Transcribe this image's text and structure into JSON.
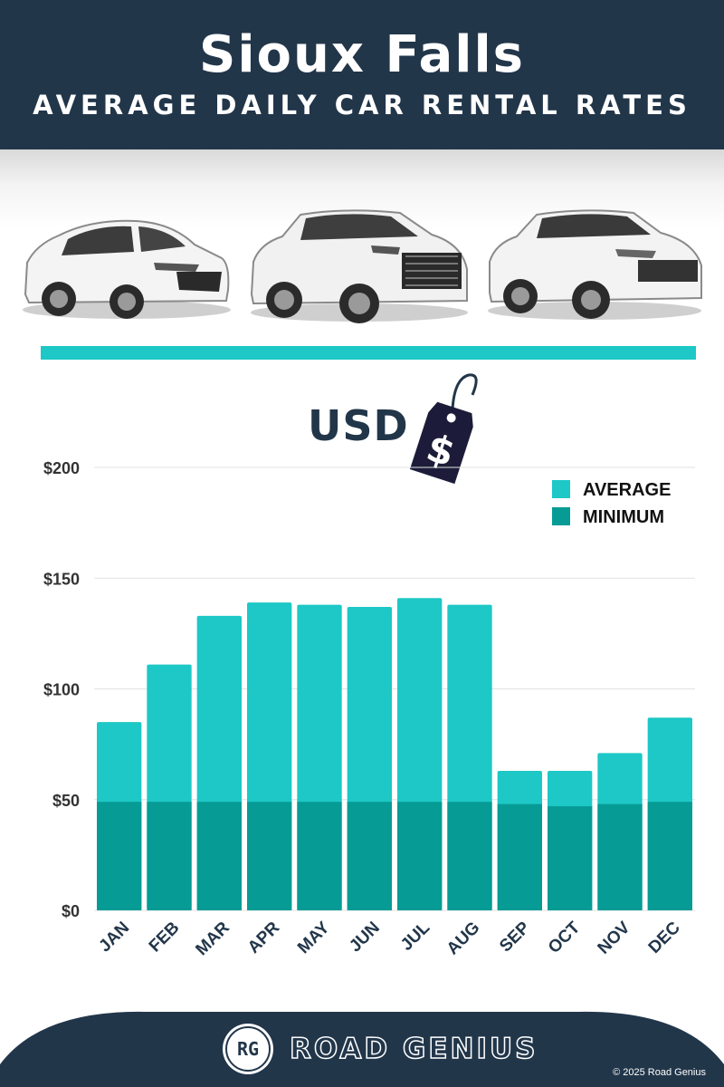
{
  "header": {
    "city": "Sioux Falls",
    "subtitle": "AVERAGE DAILY CAR RENTAL RATES"
  },
  "currency": {
    "label": "USD",
    "tag_symbol": "$"
  },
  "chart_data": {
    "type": "bar",
    "stacked_overlay": true,
    "categories": [
      "JAN",
      "FEB",
      "MAR",
      "APR",
      "MAY",
      "JUN",
      "JUL",
      "AUG",
      "SEP",
      "OCT",
      "NOV",
      "DEC"
    ],
    "series": [
      {
        "name": "AVERAGE",
        "color": "#1dc8c6",
        "values": [
          85,
          111,
          133,
          139,
          138,
          137,
          141,
          138,
          63,
          63,
          71,
          87
        ]
      },
      {
        "name": "MINIMUM",
        "color": "#079b95",
        "values": [
          49,
          49,
          49,
          49,
          49,
          49,
          49,
          49,
          48,
          47,
          48,
          49
        ]
      }
    ],
    "y_ticks": [
      0,
      50,
      100,
      150,
      200
    ],
    "y_tick_labels": [
      "$0",
      "$50",
      "$100",
      "$150",
      "$200"
    ],
    "ylim": [
      0,
      200
    ],
    "grid": true,
    "legend_position": "top-right",
    "xlabel": "",
    "ylabel": ""
  },
  "footer": {
    "brand_initials": "RG",
    "brand_name": "ROAD GENIUS",
    "copyright": "© 2025 Road Genius"
  },
  "colors": {
    "navy": "#22364a",
    "teal_light": "#1dc8c6",
    "teal_dark": "#079b95"
  },
  "icons": [
    "car-hatchback-icon",
    "car-suv-icon",
    "car-crossover-icon",
    "price-tag-icon"
  ]
}
